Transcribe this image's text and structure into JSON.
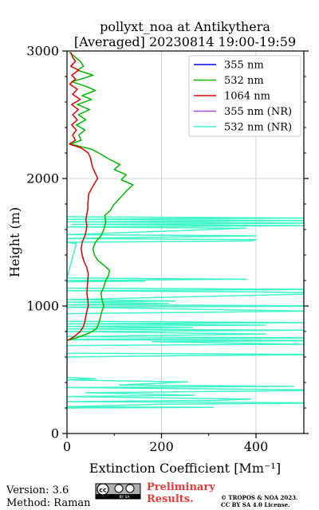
{
  "colors": {
    "c355": "#0000ff",
    "c532": "#00b800",
    "c1064": "#e00000",
    "c355nr": "#9e4fe0",
    "c532nr": "#3df5c8",
    "prelim": "#e83a3a",
    "grid": "#c8c8c8"
  },
  "chart_data": {
    "type": "line",
    "title": "pollyxt_noa at Antikythera",
    "subtitle": "[Averaged] 20230814 19:00-19:59",
    "xlabel": "Extinction Coefficient [Mm⁻¹]",
    "ylabel": "Height (m)",
    "xlim": [
      0,
      500
    ],
    "ylim": [
      0,
      3000
    ],
    "xticks": [
      "0",
      "200",
      "400"
    ],
    "yticks": [
      "0",
      "1000",
      "2000",
      "3000"
    ],
    "grid": true,
    "legend_position": "top-right",
    "legend": [
      "355 nm",
      "532 nm",
      "1064 nm",
      "355 nm (NR)",
      "532 nm (NR)"
    ],
    "series": [
      {
        "name": "355 nm",
        "color_key": "c355",
        "points": []
      },
      {
        "name": "532 nm",
        "color_key": "c532",
        "points": [
          [
            5,
            2990
          ],
          [
            18,
            2950
          ],
          [
            28,
            2920
          ],
          [
            35,
            2880
          ],
          [
            22,
            2850
          ],
          [
            55,
            2810
          ],
          [
            30,
            2780
          ],
          [
            10,
            2760
          ],
          [
            42,
            2720
          ],
          [
            60,
            2690
          ],
          [
            32,
            2650
          ],
          [
            52,
            2620
          ],
          [
            22,
            2580
          ],
          [
            48,
            2540
          ],
          [
            24,
            2500
          ],
          [
            40,
            2460
          ],
          [
            20,
            2420
          ],
          [
            38,
            2380
          ],
          [
            25,
            2340
          ],
          [
            30,
            2300
          ],
          [
            8,
            2270
          ],
          [
            52,
            2230
          ],
          [
            72,
            2190
          ],
          [
            90,
            2150
          ],
          [
            112,
            2110
          ],
          [
            100,
            2070
          ],
          [
            125,
            2030
          ],
          [
            115,
            1990
          ],
          [
            140,
            1950
          ],
          [
            128,
            1910
          ],
          [
            118,
            1870
          ],
          [
            108,
            1830
          ],
          [
            98,
            1790
          ],
          [
            92,
            1750
          ],
          [
            80,
            1710
          ],
          [
            82,
            1660
          ],
          [
            78,
            1600
          ],
          [
            72,
            1550
          ],
          [
            60,
            1500
          ],
          [
            55,
            1450
          ],
          [
            58,
            1400
          ],
          [
            65,
            1360
          ],
          [
            78,
            1320
          ],
          [
            90,
            1280
          ],
          [
            88,
            1240
          ],
          [
            82,
            1200
          ],
          [
            78,
            1150
          ],
          [
            72,
            1100
          ],
          [
            74,
            1050
          ],
          [
            78,
            1000
          ],
          [
            74,
            960
          ],
          [
            70,
            900
          ],
          [
            66,
            850
          ],
          [
            62,
            820
          ],
          [
            48,
            790
          ],
          [
            20,
            750
          ],
          [
            0,
            730
          ]
        ]
      },
      {
        "name": "1064 nm",
        "color_key": "c1064",
        "points": [
          [
            8,
            2990
          ],
          [
            12,
            2950
          ],
          [
            18,
            2920
          ],
          [
            8,
            2880
          ],
          [
            25,
            2850
          ],
          [
            10,
            2810
          ],
          [
            18,
            2780
          ],
          [
            6,
            2740
          ],
          [
            22,
            2700
          ],
          [
            12,
            2660
          ],
          [
            28,
            2620
          ],
          [
            10,
            2580
          ],
          [
            24,
            2540
          ],
          [
            12,
            2500
          ],
          [
            22,
            2460
          ],
          [
            10,
            2420
          ],
          [
            20,
            2380
          ],
          [
            12,
            2340
          ],
          [
            18,
            2300
          ],
          [
            5,
            2270
          ],
          [
            30,
            2240
          ],
          [
            45,
            2200
          ],
          [
            50,
            2160
          ],
          [
            52,
            2120
          ],
          [
            55,
            2080
          ],
          [
            60,
            2040
          ],
          [
            65,
            2000
          ],
          [
            58,
            1960
          ],
          [
            52,
            1920
          ],
          [
            46,
            1880
          ],
          [
            45,
            1840
          ],
          [
            44,
            1800
          ],
          [
            44,
            1760
          ],
          [
            42,
            1720
          ],
          [
            40,
            1680
          ],
          [
            42,
            1630
          ],
          [
            40,
            1580
          ],
          [
            38,
            1550
          ],
          [
            32,
            1500
          ],
          [
            30,
            1450
          ],
          [
            32,
            1400
          ],
          [
            36,
            1350
          ],
          [
            42,
            1300
          ],
          [
            45,
            1250
          ],
          [
            44,
            1200
          ],
          [
            43,
            1150
          ],
          [
            42,
            1100
          ],
          [
            44,
            1050
          ],
          [
            45,
            1000
          ],
          [
            42,
            960
          ],
          [
            40,
            920
          ],
          [
            38,
            880
          ],
          [
            35,
            840
          ],
          [
            28,
            800
          ],
          [
            15,
            760
          ],
          [
            2,
            730
          ]
        ]
      },
      {
        "name": "355 nm (NR)",
        "color_key": "c355nr",
        "points": []
      },
      {
        "name": "532 nm (NR)",
        "color_key": "c532nr",
        "points": [
          [
            0,
            1700
          ],
          [
            500,
            1690
          ],
          [
            0,
            1680
          ],
          [
            520,
            1670
          ],
          [
            0,
            1660
          ],
          [
            520,
            1650
          ],
          [
            10,
            1640
          ],
          [
            510,
            1630
          ],
          [
            0,
            1620
          ],
          [
            380,
            1610
          ],
          [
            0,
            1560
          ],
          [
            400,
            1550
          ],
          [
            0,
            1530
          ],
          [
            400,
            1520
          ],
          [
            390,
            1510
          ],
          [
            0,
            1500
          ],
          [
            20,
            1490
          ],
          [
            0,
            1220
          ],
          [
            380,
            1210
          ],
          [
            0,
            1200
          ],
          [
            165,
            1195
          ],
          [
            0,
            1190
          ],
          [
            0,
            1140
          ],
          [
            560,
            1130
          ],
          [
            0,
            1120
          ],
          [
            400,
            1110
          ],
          [
            580,
            1100
          ],
          [
            0,
            1050
          ],
          [
            230,
            1040
          ],
          [
            0,
            1030
          ],
          [
            215,
            1020
          ],
          [
            0,
            1010
          ],
          [
            600,
            1000
          ],
          [
            0,
            990
          ],
          [
            520,
            960
          ],
          [
            0,
            940
          ],
          [
            0,
            880
          ],
          [
            520,
            870
          ],
          [
            0,
            860
          ],
          [
            420,
            850
          ],
          [
            0,
            840
          ],
          [
            265,
            830
          ],
          [
            0,
            820
          ],
          [
            500,
            810
          ],
          [
            0,
            800
          ],
          [
            420,
            780
          ],
          [
            0,
            760
          ],
          [
            560,
            750
          ],
          [
            40,
            740
          ],
          [
            0,
            735
          ],
          [
            600,
            730
          ],
          [
            180,
            720
          ],
          [
            500,
            700
          ],
          [
            0,
            690
          ],
          [
            0,
            630
          ],
          [
            560,
            620
          ],
          [
            240,
            610
          ],
          [
            0,
            600
          ],
          [
            0,
            440
          ],
          [
            60,
            430
          ],
          [
            0,
            420
          ],
          [
            80,
            415
          ],
          [
            255,
            405
          ],
          [
            110,
            380
          ],
          [
            480,
            370
          ],
          [
            0,
            360
          ],
          [
            600,
            340
          ],
          [
            40,
            320
          ],
          [
            270,
            300
          ],
          [
            0,
            290
          ],
          [
            390,
            270
          ],
          [
            320,
            260
          ],
          [
            0,
            250
          ],
          [
            600,
            240
          ],
          [
            200,
            230
          ],
          [
            0,
            210
          ],
          [
            310,
            205
          ],
          [
            0,
            200
          ]
        ]
      }
    ]
  },
  "footer": {
    "version": "Version: 3.6",
    "method": "Method: Raman",
    "prelim_line1": "Preliminary",
    "prelim_line2": "Results.",
    "copyright_line1": "© TROPOS & NOA 2023.",
    "copyright_line2": "CC BY SA 4.0 License.",
    "cc_badge_text": "BY   SA"
  },
  "license_icon": "cc-by-sa-badge"
}
